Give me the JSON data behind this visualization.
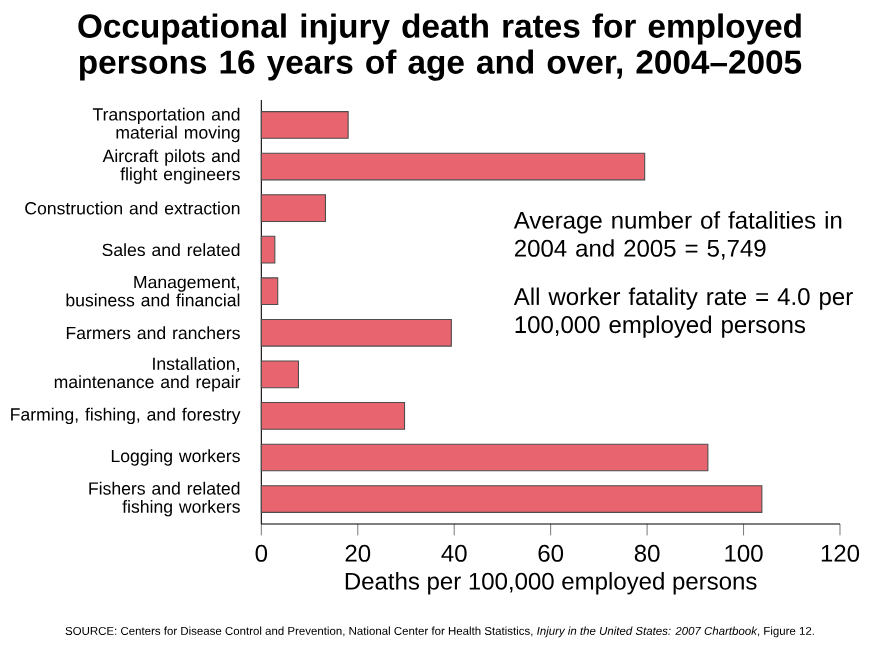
{
  "chart_data": {
    "type": "bar",
    "orientation": "horizontal",
    "title": "Occupational injury death rates for employed persons 16 years of age and over, 2004–2005",
    "categories": [
      "Transportation and material moving",
      "Aircraft pilots and flight engineers",
      "Construction and extraction",
      "Sales and related",
      "Management, business and financial",
      "Farmers and ranchers",
      "Installation, maintenance and repair",
      "Farming, fishing, and forestry",
      "Logging workers",
      "Fishers and related fishing workers"
    ],
    "values": [
      18.0,
      79.5,
      13.3,
      2.8,
      3.4,
      39.4,
      7.7,
      29.7,
      92.6,
      103.8
    ],
    "color": "#e8646e",
    "xlabel": "Deaths per 100,000 employed persons",
    "xlim": [
      0,
      120
    ],
    "xticks": [
      0,
      20,
      40,
      60,
      80,
      100,
      120
    ],
    "annotations": [
      "Average number of fatalities in 2004 and 2005 = 5,749",
      "All worker fatality rate = 4.0 per 100,000 employed persons",
      "SOURCE: Centers for Disease Control and Prevention, National Center for Health Statistics, *Injury in the United States: 2007 Chartbook*, Figure 12."
    ]
  }
}
